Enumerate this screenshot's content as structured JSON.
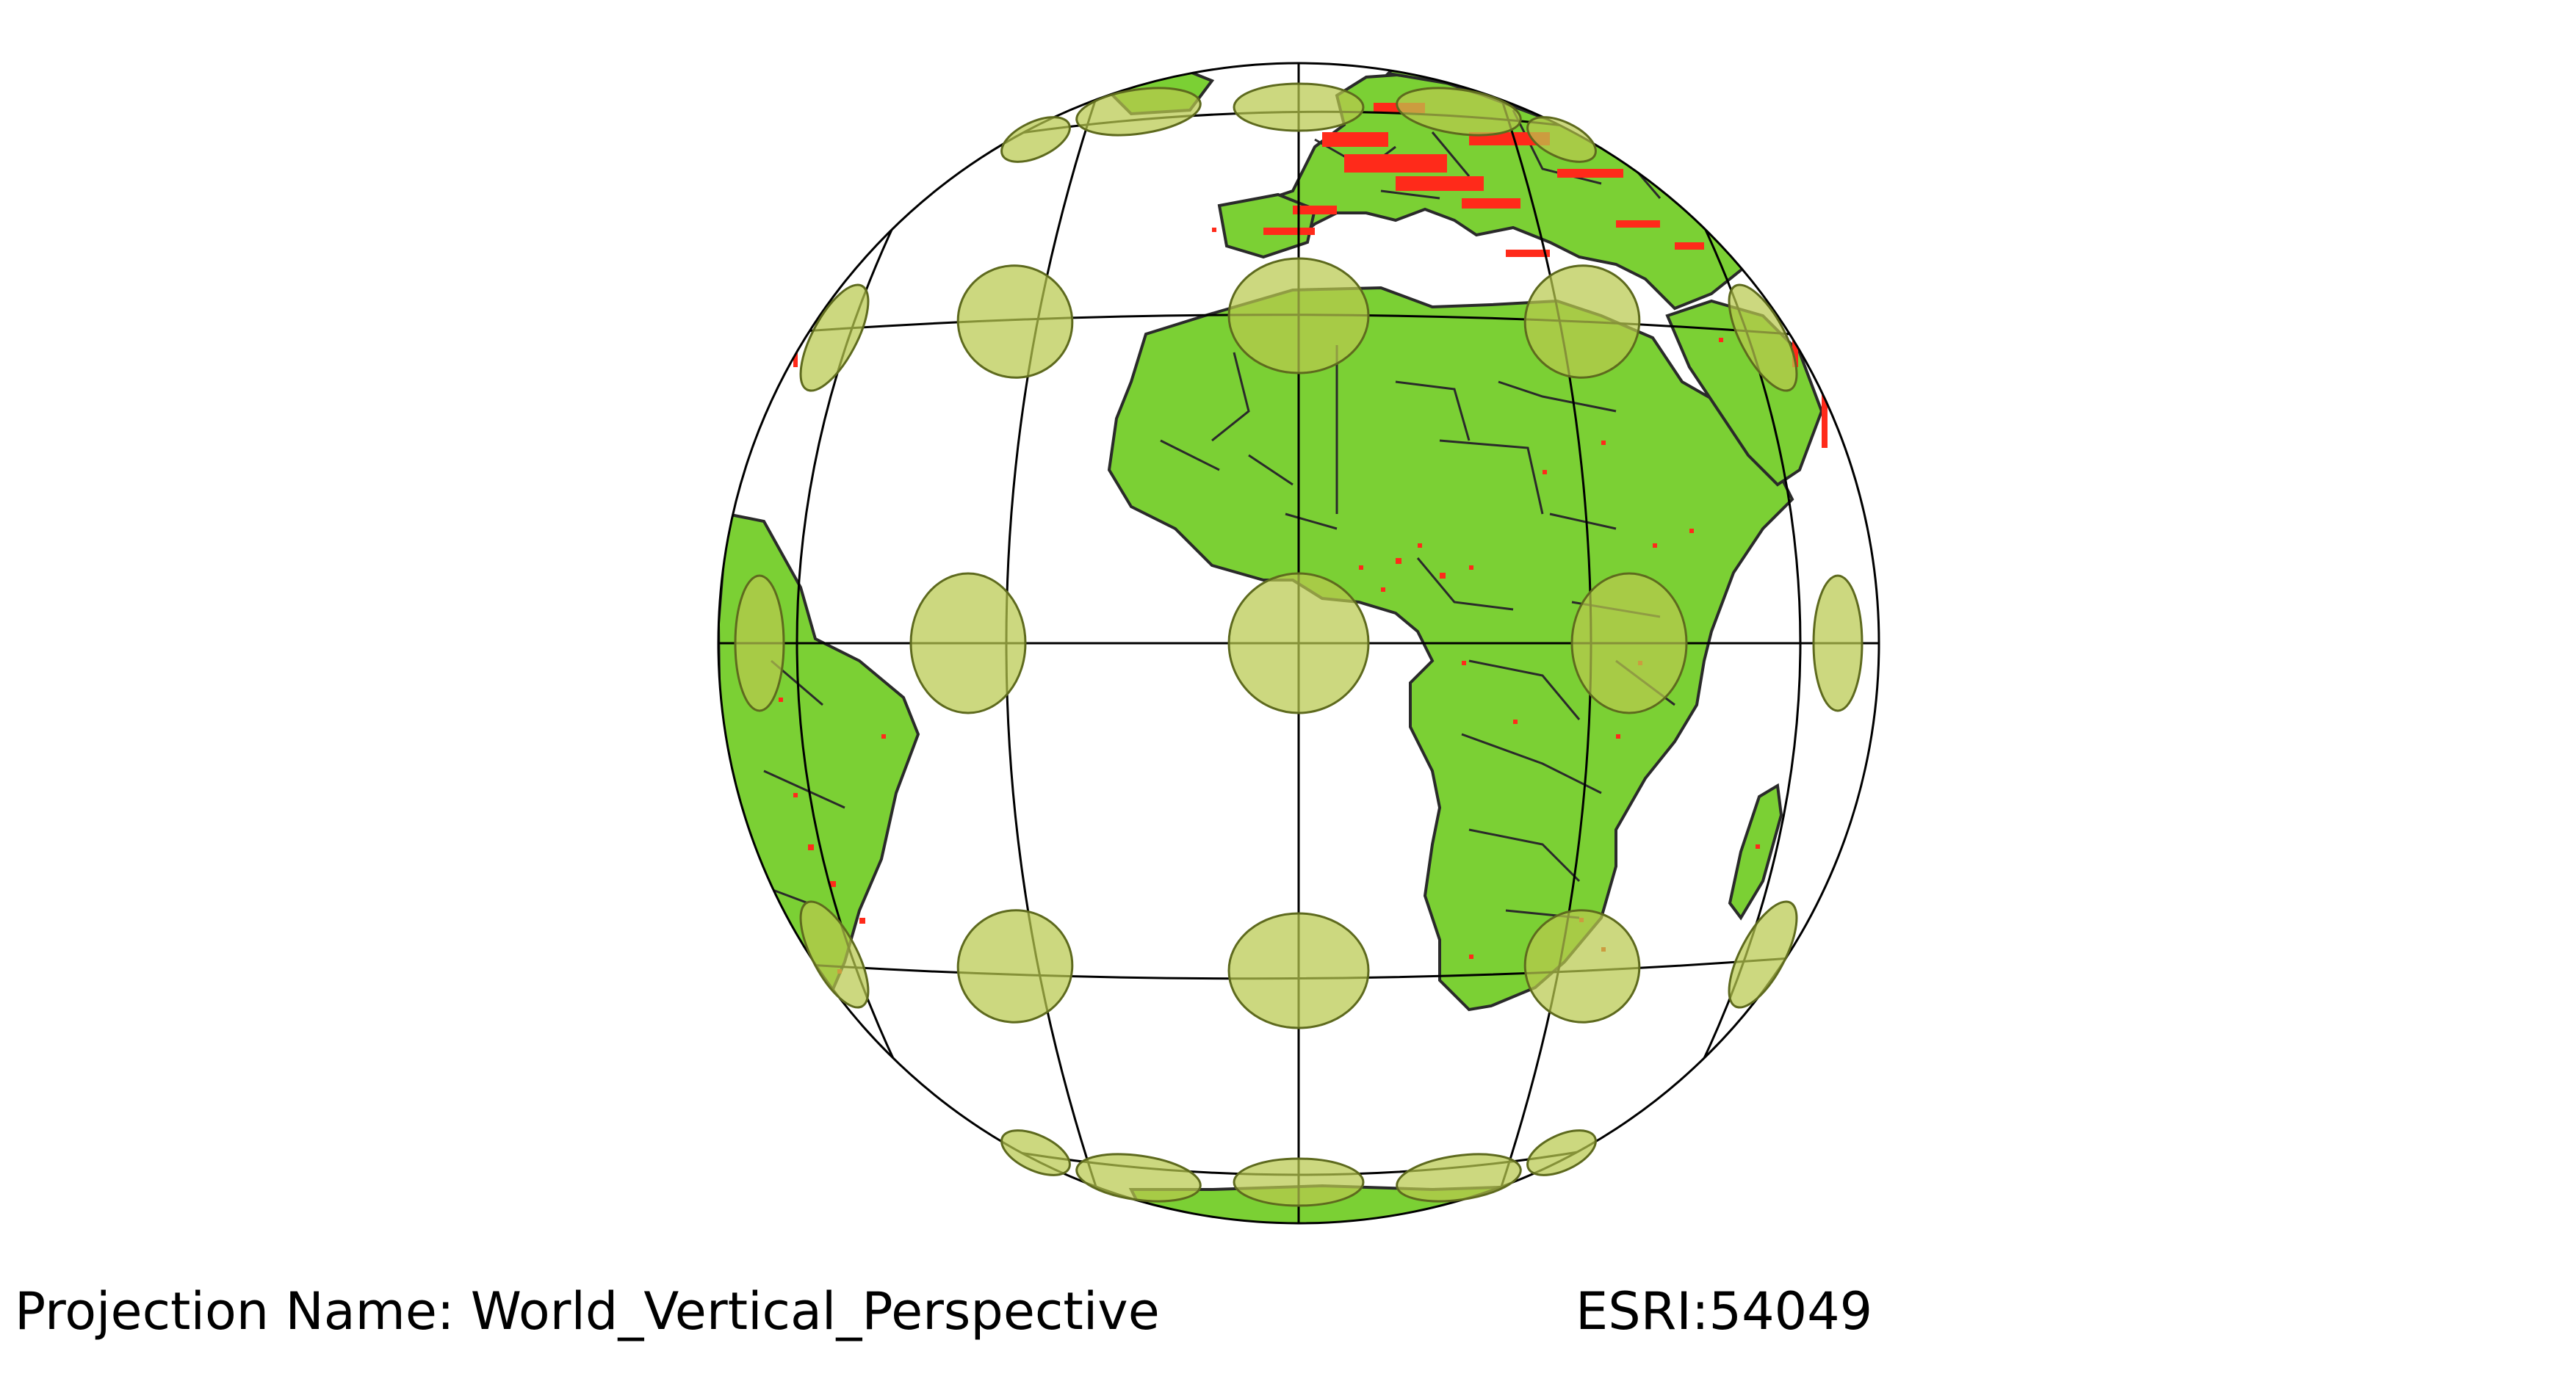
{
  "map": {
    "type": "globe",
    "colors": {
      "land": "#7bd034",
      "borders": "#2a2a2a",
      "points": "#ff2a1a",
      "indicatrix_fill": "#b9c94e",
      "indicatrix_stroke": "#5e6a1e",
      "graticule": "#000000"
    },
    "legend": {
      "projection_label": "Projection Name: World_Vertical_Perspective",
      "code_label": "ESRI:54049"
    }
  }
}
